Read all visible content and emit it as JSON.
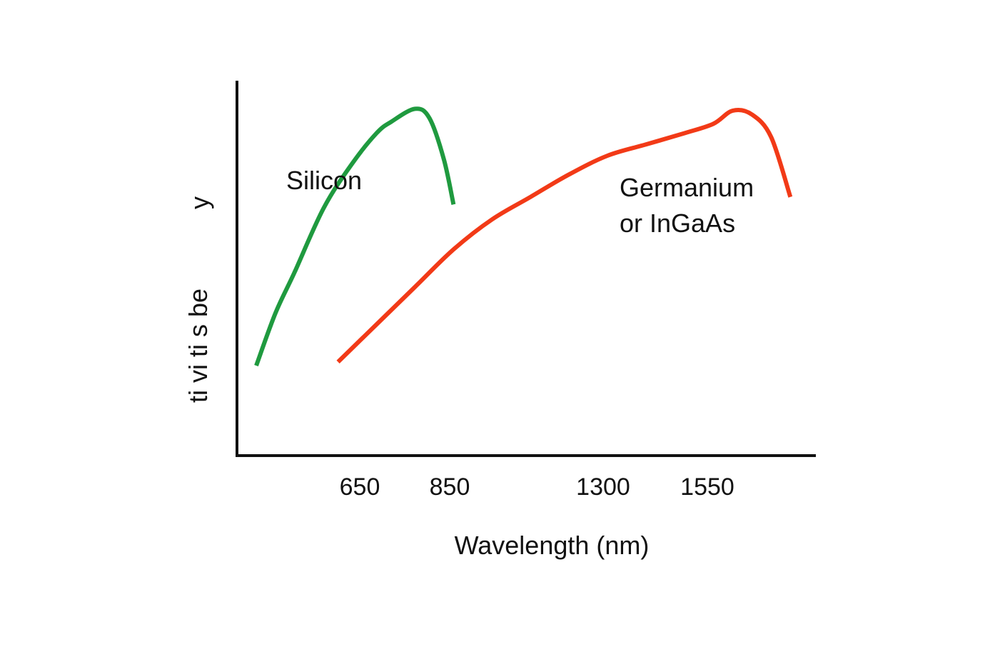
{
  "chart_data": {
    "type": "line",
    "title": "",
    "xlabel": "Wavelength (nm)",
    "ylabel_fragments": [
      "y",
      "ti vi ti s be"
    ],
    "x_ticks": [
      650,
      850,
      1300,
      1550
    ],
    "xlim": [
      550,
      1750
    ],
    "ylim": [
      0,
      100
    ],
    "grid": false,
    "legend": "none",
    "series": [
      {
        "name": "Silicon",
        "color": "#1f9a3f",
        "x": [
          590,
          630,
          670,
          730,
          790,
          840,
          870,
          920,
          950,
          980,
          1000
        ],
        "y": [
          24,
          38,
          49,
          66,
          78,
          86,
          89,
          92.5,
          90,
          79,
          67
        ]
      },
      {
        "name": "Germanium\nor InGaAs",
        "color": "#f23a17",
        "x": [
          760,
          840,
          920,
          1000,
          1080,
          1160,
          1240,
          1320,
          1400,
          1480,
          1540,
          1580,
          1620,
          1660,
          1700
        ],
        "y": [
          25,
          35,
          45,
          55,
          63,
          69,
          75,
          80,
          83,
          86,
          88.5,
          92,
          91,
          85,
          69
        ]
      }
    ],
    "annotations": [
      "Silicon",
      "Germanium",
      "or InGaAs"
    ]
  }
}
